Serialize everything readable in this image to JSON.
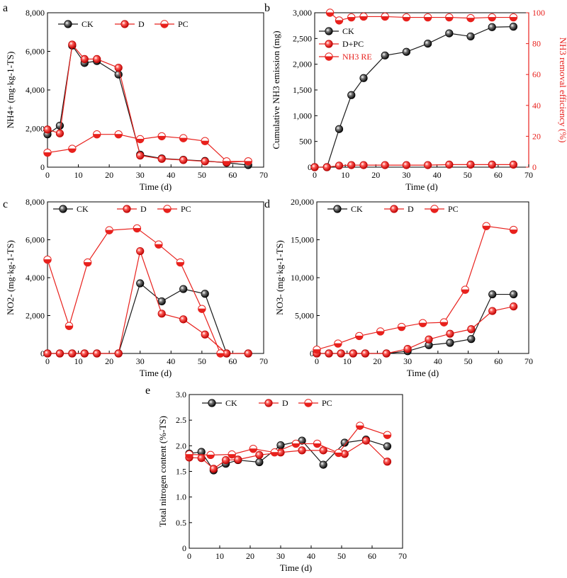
{
  "colors": {
    "ck": "#1a1a1a",
    "red": "#e8211d",
    "axis": "#000000"
  },
  "chart_data": [
    {
      "id": "a",
      "panel_letter": "a",
      "type": "line",
      "xlabel": "Time (d)",
      "ylabel": "NH4+ (mg·kg-1-TS)",
      "xlim": [
        0,
        70
      ],
      "ylim": [
        0,
        8000
      ],
      "xticks": [
        0,
        10,
        20,
        30,
        40,
        50,
        60,
        70
      ],
      "yticks": [
        0,
        2000,
        4000,
        6000,
        8000
      ],
      "ytick_labels": [
        "0",
        "2,000",
        "4,000",
        "6,000",
        "8,000"
      ],
      "legend_position": "top",
      "series": [
        {
          "name": "CK",
          "marker": "filled-black",
          "x": [
            0,
            4,
            8,
            12,
            16,
            23,
            30,
            37,
            44,
            51,
            58,
            65
          ],
          "y": [
            1700,
            2150,
            6300,
            5400,
            5500,
            4800,
            650,
            450,
            380,
            320,
            230,
            110
          ]
        },
        {
          "name": "D",
          "marker": "filled-red",
          "x": [
            0,
            4,
            8,
            12,
            16,
            23,
            30,
            37,
            44,
            51,
            58,
            65
          ],
          "y": [
            1950,
            1750,
            6350,
            5600,
            5600,
            5150,
            600,
            430,
            370,
            300,
            250,
            300
          ]
        },
        {
          "name": "PC",
          "marker": "half-red",
          "x": [
            0,
            8,
            16,
            23,
            30,
            37,
            44,
            51,
            58,
            65
          ],
          "y": [
            750,
            950,
            1700,
            1700,
            1450,
            1600,
            1500,
            1350,
            300,
            300
          ]
        }
      ]
    },
    {
      "id": "b",
      "panel_letter": "b",
      "type": "line",
      "xlabel": "Time (d)",
      "ylabel": "Cumulative NH3 emission (mg)",
      "ylabel2": "NH3 removal efficiency (%)",
      "xlim": [
        0,
        70
      ],
      "ylim": [
        0,
        3000
      ],
      "ylim2": [
        0,
        100
      ],
      "xticks": [
        0,
        10,
        20,
        30,
        40,
        50,
        60,
        70
      ],
      "yticks": [
        0,
        500,
        1000,
        1500,
        2000,
        2500,
        3000
      ],
      "ytick_labels": [
        "0",
        "500",
        "1,000",
        "1,500",
        "2,000",
        "2,500",
        "3,000"
      ],
      "yticks2": [
        0,
        20,
        40,
        60,
        80,
        100
      ],
      "legend_position": "top-left",
      "series": [
        {
          "name": "CK",
          "marker": "filled-black",
          "axis": "left",
          "x": [
            0,
            4,
            8,
            12,
            16,
            23,
            30,
            37,
            44,
            51,
            58,
            65
          ],
          "y": [
            0,
            0,
            740,
            1400,
            1730,
            2170,
            2240,
            2400,
            2600,
            2540,
            2720,
            2730
          ]
        },
        {
          "name": "D+PC",
          "marker": "filled-red",
          "axis": "left",
          "x": [
            0,
            4,
            8,
            12,
            16,
            23,
            30,
            37,
            44,
            51,
            58,
            65
          ],
          "y": [
            0,
            0,
            30,
            40,
            40,
            40,
            40,
            40,
            50,
            50,
            50,
            50
          ]
        },
        {
          "name": "NH3 RE",
          "marker": "half-red",
          "axis": "right",
          "x": [
            5,
            8,
            12,
            16,
            23,
            30,
            37,
            44,
            51,
            58,
            65
          ],
          "y": [
            100,
            95,
            97,
            97.5,
            97.5,
            97,
            97,
            97,
            96.5,
            97,
            97
          ]
        }
      ]
    },
    {
      "id": "c",
      "panel_letter": "c",
      "type": "line",
      "xlabel": "Time (d)",
      "ylabel": "NO2- (mg·kg-1-TS)",
      "xlim": [
        0,
        70
      ],
      "ylim": [
        0,
        8000
      ],
      "xticks": [
        0,
        10,
        20,
        30,
        40,
        50,
        60,
        70
      ],
      "yticks": [
        0,
        2000,
        4000,
        6000,
        8000
      ],
      "ytick_labels": [
        "0",
        "2,000",
        "4,000",
        "6,000",
        "8,000"
      ],
      "legend_position": "top",
      "series": [
        {
          "name": "CK",
          "marker": "filled-black",
          "x": [
            0,
            4,
            8,
            12,
            16,
            23,
            30,
            37,
            44,
            51,
            58,
            65
          ],
          "y": [
            0,
            0,
            0,
            0,
            0,
            0,
            3700,
            2750,
            3400,
            3150,
            0,
            0
          ]
        },
        {
          "name": "D",
          "marker": "filled-red",
          "x": [
            0,
            4,
            8,
            12,
            16,
            23,
            30,
            37,
            44,
            51,
            58,
            65
          ],
          "y": [
            0,
            0,
            0,
            0,
            0,
            0,
            5400,
            2100,
            1800,
            1000,
            0,
            0
          ]
        },
        {
          "name": "PC",
          "marker": "half-red",
          "x": [
            0,
            7,
            13,
            20,
            29,
            36,
            43,
            50,
            56
          ],
          "y": [
            4950,
            1450,
            4800,
            6500,
            6600,
            5750,
            4800,
            2350,
            0
          ]
        }
      ]
    },
    {
      "id": "d",
      "panel_letter": "d",
      "type": "line",
      "xlabel": "Time (d)",
      "ylabel": "NO3- (mg·kg-1-TS)",
      "xlim": [
        0,
        70
      ],
      "ylim": [
        0,
        20000
      ],
      "xticks": [
        0,
        10,
        20,
        30,
        40,
        50,
        60,
        70
      ],
      "yticks": [
        0,
        5000,
        10000,
        15000,
        20000
      ],
      "ytick_labels": [
        "0",
        "5,000",
        "10,000",
        "15,000",
        "20,000"
      ],
      "legend_position": "top",
      "series": [
        {
          "name": "CK",
          "marker": "filled-black",
          "x": [
            0,
            4,
            8,
            12,
            16,
            23,
            30,
            37,
            44,
            51,
            58,
            65
          ],
          "y": [
            0,
            0,
            0,
            0,
            0,
            0,
            300,
            1100,
            1400,
            1900,
            7800,
            7800
          ]
        },
        {
          "name": "D",
          "marker": "filled-red",
          "x": [
            0,
            4,
            8,
            12,
            16,
            23,
            30,
            37,
            44,
            51,
            58,
            65
          ],
          "y": [
            0,
            0,
            0,
            0,
            0,
            0,
            600,
            1850,
            2600,
            3200,
            5600,
            6200
          ]
        },
        {
          "name": "PC",
          "marker": "half-red",
          "x": [
            0,
            7,
            14,
            21,
            28,
            35,
            42,
            49,
            56,
            65
          ],
          "y": [
            500,
            1300,
            2300,
            2900,
            3500,
            4000,
            4100,
            8400,
            16800,
            16300
          ]
        }
      ]
    },
    {
      "id": "e",
      "panel_letter": "e",
      "type": "line",
      "xlabel": "Time (d)",
      "ylabel": "Total nitrogen content (%-TS)",
      "xlim": [
        0,
        70
      ],
      "ylim": [
        0,
        3.0
      ],
      "xticks": [
        0,
        10,
        20,
        30,
        40,
        50,
        60,
        70
      ],
      "yticks": [
        0,
        0.5,
        1.0,
        1.5,
        2.0,
        2.5,
        3.0
      ],
      "ytick_labels": [
        "0",
        "0.5",
        "1.0",
        "1.5",
        "2.0",
        "2.5",
        "3.0"
      ],
      "legend_position": "top",
      "series": [
        {
          "name": "CK",
          "marker": "filled-black",
          "x": [
            0,
            4,
            8,
            12,
            16,
            23,
            30,
            37,
            44,
            51,
            58,
            65
          ],
          "y": [
            1.85,
            1.88,
            1.52,
            1.65,
            1.72,
            1.68,
            2.01,
            2.1,
            1.63,
            2.06,
            2.12,
            1.99
          ]
        },
        {
          "name": "D",
          "marker": "filled-red",
          "x": [
            0,
            4,
            8,
            12,
            16,
            23,
            30,
            37,
            44,
            51,
            58,
            65
          ],
          "y": [
            1.77,
            1.76,
            1.55,
            1.72,
            1.73,
            1.82,
            1.87,
            1.91,
            1.91,
            1.84,
            2.1,
            1.69
          ]
        },
        {
          "name": "PC",
          "marker": "half-red",
          "x": [
            0,
            7,
            14,
            21,
            28,
            35,
            42,
            49,
            56,
            65
          ],
          "y": [
            1.83,
            1.82,
            1.83,
            1.94,
            1.87,
            2.04,
            2.04,
            1.86,
            2.39,
            2.21
          ]
        }
      ]
    }
  ]
}
